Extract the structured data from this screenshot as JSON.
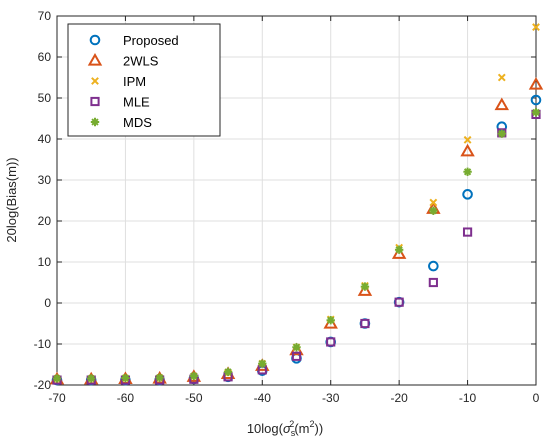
{
  "chart_data": {
    "type": "scatter",
    "x": [
      -70,
      -65,
      -60,
      -55,
      -50,
      -45,
      -40,
      -35,
      -30,
      -25,
      -20,
      -15,
      -10,
      -5,
      0
    ],
    "xlim": [
      -70,
      0
    ],
    "ylim": [
      -20,
      70
    ],
    "xticks": [
      -70,
      -60,
      -50,
      -40,
      -30,
      -20,
      -10,
      0
    ],
    "yticks": [
      -20,
      -10,
      0,
      10,
      20,
      30,
      40,
      50,
      60,
      70
    ],
    "grid": true,
    "legend_position": "top-left",
    "xlabel_prefix": "10log(",
    "xlabel_sigma": "σ",
    "xlabel_sub": "s",
    "xlabel_sup": "2",
    "xlabel_units_open": "(m",
    "xlabel_units_sup": "2",
    "xlabel_suffix": "))",
    "ylabel": "20log(Bias(m))",
    "series": [
      {
        "name": "Proposed",
        "marker": "circle",
        "color": "#0072BD",
        "values": [
          -18.8,
          -18.8,
          -18.8,
          -18.8,
          -18.5,
          -18.0,
          -16.5,
          -13.5,
          -9.5,
          -5.0,
          0.2,
          9.0,
          26.5,
          43.0,
          49.5
        ]
      },
      {
        "name": "2WLS",
        "marker": "triangle",
        "color": "#D95319",
        "values": [
          -18.6,
          -18.6,
          -18.5,
          -18.4,
          -18.0,
          -17.3,
          -15.3,
          -11.5,
          -5.0,
          3.0,
          12.0,
          23.0,
          37.0,
          48.3,
          53.3
        ]
      },
      {
        "name": "IPM",
        "marker": "x",
        "color": "#EDB120",
        "values": [
          -18.5,
          -18.5,
          -18.4,
          -18.3,
          -17.9,
          -17.0,
          -14.8,
          -10.8,
          -4.0,
          4.2,
          13.5,
          24.5,
          39.8,
          55.0,
          67.3
        ]
      },
      {
        "name": "MLE",
        "marker": "square",
        "color": "#7E2F8E",
        "values": [
          -18.8,
          -18.8,
          -18.8,
          -18.8,
          -18.6,
          -18.0,
          -16.3,
          -13.0,
          -9.5,
          -5.0,
          0.2,
          5.0,
          17.3,
          41.5,
          46.0
        ]
      },
      {
        "name": "MDS",
        "marker": "asterisk",
        "color": "#77AC30",
        "values": [
          -18.4,
          -18.4,
          -18.3,
          -18.2,
          -17.8,
          -16.8,
          -14.8,
          -10.8,
          -4.2,
          4.0,
          13.0,
          22.5,
          32.0,
          41.3,
          46.5
        ]
      }
    ]
  }
}
